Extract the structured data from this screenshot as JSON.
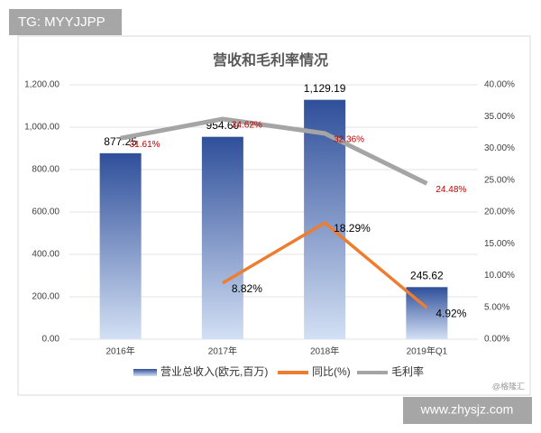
{
  "chart_data": {
    "type": "bar",
    "title": "营收和毛利率情况",
    "categories": [
      "2016年",
      "2017年",
      "2018年",
      "2019年Q1"
    ],
    "series": [
      {
        "name": "营业总收入(欧元,百万)",
        "type": "bar",
        "color": "#2f4f9a",
        "values": [
          877.25,
          954.6,
          1129.19,
          245.62
        ],
        "value_labels": [
          "877.25",
          "954.60",
          "1,129.19",
          "245.62"
        ],
        "label_color": "#000000"
      },
      {
        "name": "同比(%)",
        "type": "line",
        "axis": "y2",
        "color": "#ed7d31",
        "values": [
          null,
          8.82,
          18.29,
          4.92
        ],
        "value_labels": [
          null,
          "8.82%",
          "18.29%",
          "4.92%"
        ],
        "label_color": "#000000"
      },
      {
        "name": "毛利率",
        "type": "line",
        "axis": "y2",
        "color": "#a5a5a5",
        "values": [
          31.61,
          34.62,
          32.36,
          24.48
        ],
        "value_labels": [
          "31.61%",
          "34.62%",
          "32.36%",
          "24.48%"
        ],
        "label_color": "#c00000"
      }
    ],
    "ylim": [
      0,
      1200
    ],
    "yticks": [
      {
        "value": 0,
        "label": "0.00"
      },
      {
        "value": 200,
        "label": "200.00"
      },
      {
        "value": 400,
        "label": "400.00"
      },
      {
        "value": 600,
        "label": "600.00"
      },
      {
        "value": 800,
        "label": "800.00"
      },
      {
        "value": 1000,
        "label": "1,000.00"
      },
      {
        "value": 1200,
        "label": "1,200.00"
      }
    ],
    "y2lim": [
      0,
      40
    ],
    "y2ticks": [
      {
        "value": 0,
        "label": "0.00%"
      },
      {
        "value": 5,
        "label": "5.00%"
      },
      {
        "value": 10,
        "label": "10.00%"
      },
      {
        "value": 15,
        "label": "15.00%"
      },
      {
        "value": 20,
        "label": "20.00%"
      },
      {
        "value": 25,
        "label": "25.00%"
      },
      {
        "value": 30,
        "label": "30.00%"
      },
      {
        "value": 35,
        "label": "35.00%"
      },
      {
        "value": 40,
        "label": "40.00%"
      }
    ],
    "grid": true
  },
  "watermarks": [
    "TG: MYYJJPP",
    "www.zhysjz.com",
    "@格隆汇"
  ]
}
